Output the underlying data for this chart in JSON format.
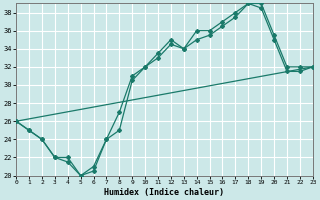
{
  "xlabel": "Humidex (Indice chaleur)",
  "xlim": [
    0,
    23
  ],
  "ylim": [
    20,
    39
  ],
  "yticks": [
    20,
    22,
    24,
    26,
    28,
    30,
    32,
    34,
    36,
    38
  ],
  "xticks": [
    0,
    1,
    2,
    3,
    4,
    5,
    6,
    7,
    8,
    9,
    10,
    11,
    12,
    13,
    14,
    15,
    16,
    17,
    18,
    19,
    20,
    21,
    22,
    23
  ],
  "bg_color": "#cce8e8",
  "line_color": "#1a7a6a",
  "line_straight": {
    "x": [
      0,
      23
    ],
    "y": [
      26,
      32
    ],
    "has_markers": false
  },
  "line_upper": {
    "x": [
      0,
      1,
      2,
      3,
      4,
      5,
      6,
      7,
      8,
      9,
      10,
      11,
      12,
      13,
      14,
      15,
      16,
      17,
      18,
      19,
      20,
      21,
      22,
      23
    ],
    "y": [
      26,
      25,
      24,
      22,
      22,
      20,
      21,
      24,
      27,
      31,
      32,
      33.5,
      35,
      34,
      36,
      36,
      37,
      38,
      39,
      38.5,
      35,
      31.5,
      31.5,
      32
    ],
    "has_markers": true
  },
  "line_lower": {
    "x": [
      0,
      1,
      2,
      3,
      4,
      5,
      6,
      7,
      8,
      9,
      10,
      11,
      12,
      13,
      14,
      15,
      16,
      17,
      18,
      19,
      20,
      21,
      22,
      23
    ],
    "y": [
      26,
      25,
      24,
      22,
      21.5,
      20,
      20.5,
      24,
      25,
      30.5,
      32,
      33,
      34.5,
      34,
      35,
      35.5,
      36.5,
      37.5,
      39,
      39,
      35.5,
      32,
      32,
      32
    ],
    "has_markers": true
  }
}
